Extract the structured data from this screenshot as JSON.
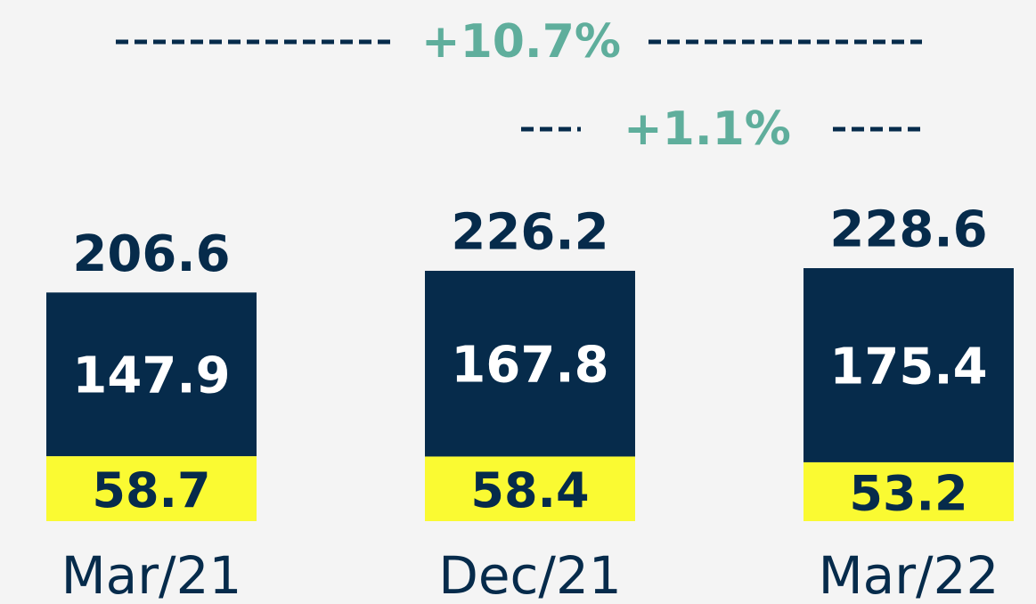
{
  "chart_data": {
    "type": "bar",
    "stacked": true,
    "categories": [
      "Mar/21",
      "Dec/21",
      "Mar/22"
    ],
    "series": [
      {
        "color": "#fafa32",
        "label_color": "#062b4b",
        "values": [
          58.7,
          58.4,
          53.2
        ]
      },
      {
        "color": "#062b4b",
        "label_color": "#ffffff",
        "values": [
          147.9,
          167.8,
          175.4
        ]
      }
    ],
    "totals": [
      206.6,
      226.2,
      228.6
    ],
    "annotations": [
      "+10.7%",
      "+1.1%"
    ],
    "annotation_color": "#5fae9c"
  }
}
